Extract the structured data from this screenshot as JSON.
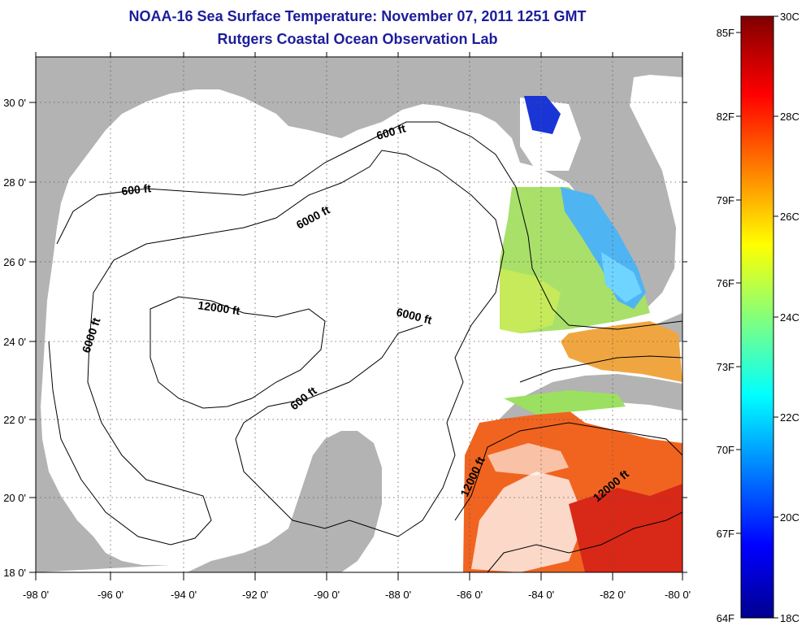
{
  "title": "NOAA-16 Sea Surface Temperature:  November 07, 2011 1251 GMT",
  "subtitle": "Rutgers Coastal Ocean Observation Lab",
  "map": {
    "lon_range": [
      -98,
      -80
    ],
    "lat_range": [
      18,
      31
    ],
    "lon_ticks": [
      "-98 0'",
      "-96 0'",
      "-94 0'",
      "-92 0'",
      "-90 0'",
      "-88 0'",
      "-86 0'",
      "-84 0'",
      "-82 0'",
      "-80 0'"
    ],
    "lat_ticks": [
      "18 0'",
      "20 0'",
      "22 0'",
      "24 0'",
      "26 0'",
      "28 0'",
      "30 0'"
    ],
    "grid": "dotted",
    "land_color": "#b3b3b3",
    "contour_labels": [
      "600 ft",
      "6000 ft",
      "6000 ft",
      "12000 ft",
      "6000 ft",
      "600 ft",
      "600 ft",
      "12000 ft",
      "12000 ft"
    ]
  },
  "colorbar": {
    "fahrenheit_labels": [
      "85F",
      "82F",
      "79F",
      "76F",
      "73F",
      "70F",
      "67F",
      "64F"
    ],
    "celsius_labels": [
      "30C",
      "28C",
      "26C",
      "24C",
      "22C",
      "20C",
      "18C"
    ],
    "range_c": [
      18,
      30
    ],
    "colors": [
      "#00008f",
      "#0000ff",
      "#00ffff",
      "#ffff00",
      "#ff0000",
      "#800000"
    ]
  }
}
